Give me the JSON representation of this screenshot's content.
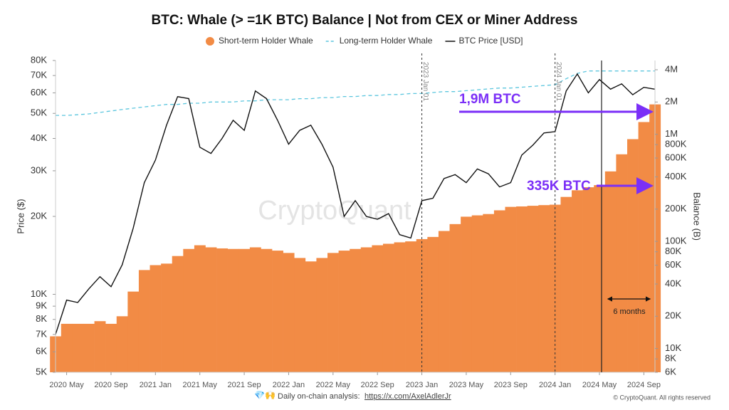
{
  "chart_data": {
    "type": "combo",
    "title": "BTC: Whale (> =1K BTC) Balance | Not from CEX or Miner Address",
    "y_label": "Price ($)",
    "y2_label": "Balance (B)",
    "watermark": "CryptoQuant",
    "x": [
      "2020-04",
      "2020-05",
      "2020-06",
      "2020-07",
      "2020-08",
      "2020-09",
      "2020-10",
      "2020-11",
      "2020-12",
      "2021-01",
      "2021-02",
      "2021-03",
      "2021-04",
      "2021-05",
      "2021-06",
      "2021-07",
      "2021-08",
      "2021-09",
      "2021-10",
      "2021-11",
      "2021-12",
      "2022-01",
      "2022-02",
      "2022-03",
      "2022-04",
      "2022-05",
      "2022-06",
      "2022-07",
      "2022-08",
      "2022-09",
      "2022-10",
      "2022-11",
      "2022-12",
      "2023-01",
      "2023-02",
      "2023-03",
      "2023-04",
      "2023-05",
      "2023-06",
      "2023-07",
      "2023-08",
      "2023-09",
      "2023-10",
      "2023-11",
      "2023-12",
      "2024-01",
      "2024-02",
      "2024-03",
      "2024-04",
      "2024-05",
      "2024-06",
      "2024-07",
      "2024-08",
      "2024-09",
      "2024-10"
    ],
    "xlim": [
      "2020-04",
      "2024-10"
    ],
    "xticks": [
      {
        "value": "2020-05",
        "label": "2020 May"
      },
      {
        "value": "2020-09",
        "label": "2020 Sep"
      },
      {
        "value": "2021-01",
        "label": "2021 Jan"
      },
      {
        "value": "2021-05",
        "label": "2021 May"
      },
      {
        "value": "2021-09",
        "label": "2021 Sep"
      },
      {
        "value": "2022-01",
        "label": "2022 Jan"
      },
      {
        "value": "2022-05",
        "label": "2022 May"
      },
      {
        "value": "2022-09",
        "label": "2022 Sep"
      },
      {
        "value": "2023-01",
        "label": "2023 Jan"
      },
      {
        "value": "2023-05",
        "label": "2023 May"
      },
      {
        "value": "2023-09",
        "label": "2023 Sep"
      },
      {
        "value": "2024-01",
        "label": "2024 Jan"
      },
      {
        "value": "2024-05",
        "label": "2024 May"
      },
      {
        "value": "2024-09",
        "label": "2024 Sep"
      }
    ],
    "ylim": [
      5000,
      80000
    ],
    "yscale": "log",
    "yticks": [
      {
        "value": 5000,
        "label": "5K"
      },
      {
        "value": 6000,
        "label": "6K"
      },
      {
        "value": 7000,
        "label": "7K"
      },
      {
        "value": 8000,
        "label": "8K"
      },
      {
        "value": 9000,
        "label": "9K"
      },
      {
        "value": 10000,
        "label": "10K"
      },
      {
        "value": 20000,
        "label": "20K"
      },
      {
        "value": 30000,
        "label": "30K"
      },
      {
        "value": 40000,
        "label": "40K"
      },
      {
        "value": 50000,
        "label": "50K"
      },
      {
        "value": 60000,
        "label": "60K"
      },
      {
        "value": 70000,
        "label": "70K"
      },
      {
        "value": 80000,
        "label": "80K"
      }
    ],
    "y2lim": [
      6000,
      4880000
    ],
    "y2scale": "log",
    "y2ticks": [
      {
        "value": 6000,
        "label": "6K"
      },
      {
        "value": 8000,
        "label": "8K"
      },
      {
        "value": 10000,
        "label": "10K"
      },
      {
        "value": 20000,
        "label": "20K"
      },
      {
        "value": 40000,
        "label": "40K"
      },
      {
        "value": 60000,
        "label": "60K"
      },
      {
        "value": 80000,
        "label": "80K"
      },
      {
        "value": 100000,
        "label": "100K"
      },
      {
        "value": 200000,
        "label": "200K"
      },
      {
        "value": 400000,
        "label": "400K"
      },
      {
        "value": 600000,
        "label": "600K"
      },
      {
        "value": 800000,
        "label": "800K"
      },
      {
        "value": 1000000,
        "label": "1M"
      },
      {
        "value": 2000000,
        "label": "2M"
      },
      {
        "value": 4000000,
        "label": "4M"
      }
    ],
    "series": [
      {
        "name": "Short-term Holder Whale",
        "type": "bar",
        "axis": "y2",
        "color": "#f28b45",
        "values": [
          13000,
          17000,
          17000,
          17000,
          18000,
          17000,
          20000,
          34000,
          54000,
          60000,
          62000,
          73000,
          85000,
          92000,
          88000,
          86000,
          85000,
          85000,
          88000,
          85000,
          82000,
          78000,
          70000,
          65000,
          70000,
          78000,
          82000,
          85000,
          88000,
          92000,
          95000,
          98000,
          100000,
          105000,
          110000,
          125000,
          145000,
          170000,
          175000,
          180000,
          195000,
          210000,
          212000,
          215000,
          218000,
          220000,
          260000,
          300000,
          320000,
          335000,
          450000,
          650000,
          900000,
          1300000,
          1900000
        ]
      },
      {
        "name": "Long-term Holder Whale",
        "type": "line",
        "dashed": true,
        "axis": "y2",
        "color": "#5cc6de",
        "values": [
          1500000,
          1500000,
          1520000,
          1550000,
          1600000,
          1650000,
          1700000,
          1750000,
          1800000,
          1850000,
          1900000,
          1900000,
          1950000,
          1950000,
          2000000,
          2000000,
          2000000,
          2050000,
          2050000,
          2100000,
          2100000,
          2100000,
          2150000,
          2150000,
          2200000,
          2200000,
          2250000,
          2250000,
          2300000,
          2300000,
          2350000,
          2350000,
          2400000,
          2400000,
          2450000,
          2500000,
          2500000,
          2550000,
          2600000,
          2650000,
          2700000,
          2700000,
          2750000,
          2800000,
          2850000,
          2900000,
          3300000,
          3700000,
          3900000,
          3900000,
          3900000,
          3900000,
          3900000,
          3900000,
          3900000
        ]
      },
      {
        "name": "BTC Price [USD]",
        "type": "line",
        "axis": "y",
        "color": "#111111",
        "values": [
          7000,
          9500,
          9300,
          10500,
          11700,
          10700,
          13000,
          18000,
          27000,
          33000,
          45000,
          58000,
          57000,
          37000,
          35000,
          40000,
          47000,
          43000,
          61000,
          57000,
          47000,
          38000,
          43000,
          45000,
          38000,
          31000,
          20000,
          23000,
          20000,
          19500,
          20500,
          17000,
          16500,
          23000,
          23500,
          28000,
          29000,
          27000,
          30500,
          29200,
          26000,
          27000,
          34500,
          37700,
          42000,
          42500,
          61000,
          71000,
          60000,
          67500,
          62000,
          65000,
          59000,
          63000,
          62000
        ]
      }
    ],
    "event_lines": [
      {
        "x": "2023-01",
        "label": "2023 Jan 01"
      },
      {
        "x": "2024-01",
        "label": "2024 Jan 01"
      }
    ],
    "annotations": [
      "1,9M BTC",
      "335K BTC",
      "6 months"
    ],
    "footer": {
      "icons": "💎🙌",
      "text": "Daily on-chain analysis:",
      "link": "https://x.com/AxelAdlerJr",
      "copyright": "© CryptoQuant. All rights reserved"
    }
  }
}
